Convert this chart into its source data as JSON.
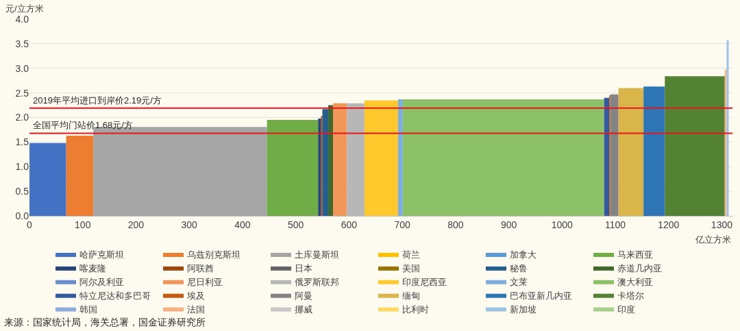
{
  "chart_data": {
    "type": "area",
    "ylabel": "元/立方米",
    "xlabel": "亿立方米",
    "xlim": [
      0,
      1320
    ],
    "xticks": [
      0,
      100,
      200,
      300,
      400,
      500,
      600,
      700,
      800,
      900,
      1000,
      1100,
      1200,
      1300
    ],
    "ylim": [
      0,
      4
    ],
    "yticks": [
      {
        "value": 0,
        "label": "0.0"
      },
      0.5,
      {
        "value": 1,
        "label": "1.0"
      },
      1.5,
      {
        "value": 2,
        "label": "2.0"
      },
      2.5,
      {
        "value": 3,
        "label": "3.0"
      },
      3.5,
      {
        "value": 4,
        "label": "4.0"
      }
    ],
    "grid": "y",
    "legend": "bottom",
    "ref_lines": [
      {
        "axis": "y",
        "value": 2.19,
        "label": "2019年平均进口到岸价2.19元/方",
        "color": "#e8161c"
      },
      {
        "axis": "y",
        "value": 1.68,
        "label": "全国平均门站价1.68元/方",
        "color": "#e8161c"
      }
    ],
    "annotations": [
      "来源：国家统计局，海关总署，国金证券研究所"
    ],
    "series": [
      {
        "name": "哈萨克斯坦",
        "color": "#4472c4",
        "x": [
          0,
          69
        ],
        "values": [
          1.48,
          1.48
        ]
      },
      {
        "name": "乌兹别克斯坦",
        "color": "#ed7d31",
        "x": [
          69,
          120
        ],
        "values": [
          1.63,
          1.63
        ]
      },
      {
        "name": "土库曼斯坦",
        "color": "#a5a5a5",
        "x": [
          120,
          446
        ],
        "values": [
          1.81,
          1.81
        ]
      },
      {
        "name": "荷兰",
        "color": "#ffc000",
        "x": [
          null
        ],
        "values": [
          null
        ]
      },
      {
        "name": "加拿大",
        "color": "#5b9bd5",
        "x": [
          null
        ],
        "values": [
          null
        ]
      },
      {
        "name": "马来西亚",
        "color": "#70ad47",
        "x": [
          446,
          542
        ],
        "values": [
          1.95,
          1.95
        ]
      },
      {
        "name": "喀麦隆",
        "color": "#264478",
        "x": [
          542,
          547.5
        ],
        "values": [
          1.98,
          1.98
        ]
      },
      {
        "name": "阿联酋",
        "color": "#9e480e",
        "x": [
          547.5,
          550
        ],
        "values": [
          2.03,
          2.03
        ]
      },
      {
        "name": "日本",
        "color": "#636363",
        "x": [
          null
        ],
        "values": [
          null
        ]
      },
      {
        "name": "美国",
        "color": "#997300",
        "x": [
          null
        ],
        "values": [
          null
        ]
      },
      {
        "name": "秘鲁",
        "color": "#255e91",
        "x": [
          550,
          561
        ],
        "values": [
          2.17,
          2.17
        ]
      },
      {
        "name": "赤道几内亚",
        "color": "#43682b",
        "x": [
          561,
          570
        ],
        "values": [
          2.25,
          2.25
        ]
      },
      {
        "name": "阿尔及利亚",
        "color": "#698ed0",
        "x": [
          null
        ],
        "values": [
          null
        ]
      },
      {
        "name": "尼日利亚",
        "color": "#f1975a",
        "x": [
          570,
          596
        ],
        "values": [
          2.29,
          2.29
        ]
      },
      {
        "name": "俄罗斯联邦",
        "color": "#b7b7b7",
        "x": [
          596,
          629
        ],
        "values": [
          2.29,
          2.29
        ]
      },
      {
        "name": "印度尼西亚",
        "color": "#ffc92e",
        "x": [
          629,
          692
        ],
        "values": [
          2.35,
          2.35
        ]
      },
      {
        "name": "文莱",
        "color": "#7cafdd",
        "x": [
          692,
          701
        ],
        "values": [
          2.37,
          2.37
        ]
      },
      {
        "name": "澳大利亚",
        "color": "#8cc168",
        "x": [
          701,
          1079
        ],
        "values": [
          2.37,
          2.37
        ]
      },
      {
        "name": "特立尼达和多巴哥",
        "color": "#335aa1",
        "x": [
          1079,
          1088.5
        ],
        "values": [
          2.4,
          2.4
        ]
      },
      {
        "name": "埃及",
        "color": "#c55a11",
        "x": [
          1088.5,
          1090.5
        ],
        "values": [
          2.45,
          2.45
        ]
      },
      {
        "name": "阿曼",
        "color": "#848484",
        "x": [
          1090.5,
          1106
        ],
        "values": [
          2.47,
          2.47
        ]
      },
      {
        "name": "缅甸",
        "color": "#d9b54a",
        "x": [
          1106,
          1153
        ],
        "values": [
          2.6,
          2.6
        ]
      },
      {
        "name": "巴布亚新几内亚",
        "color": "#2e75b6",
        "x": [
          1153,
          1193
        ],
        "values": [
          2.63,
          2.63
        ]
      },
      {
        "name": "卡塔尔",
        "color": "#548235",
        "x": [
          1193,
          1305.5
        ],
        "values": [
          2.84,
          2.84
        ]
      },
      {
        "name": "韩国",
        "color": "#8faadc",
        "x": [
          null
        ],
        "values": [
          null
        ]
      },
      {
        "name": "法国",
        "color": "#f4b183",
        "x": [
          1305.5,
          1309
        ],
        "values": [
          2.97,
          2.97
        ]
      },
      {
        "name": "挪威",
        "color": "#c9c9c9",
        "x": [
          null
        ],
        "values": [
          null
        ]
      },
      {
        "name": "比利时",
        "color": "#ffd966",
        "x": [
          null
        ],
        "values": [
          null
        ]
      },
      {
        "name": "新加坡",
        "color": "#9dc3e6",
        "x": [
          1309,
          1313
        ],
        "values": [
          3.57,
          3.57
        ]
      },
      {
        "name": "印度",
        "color": "#a9d18e",
        "x": [
          null
        ],
        "values": [
          null
        ]
      }
    ]
  }
}
